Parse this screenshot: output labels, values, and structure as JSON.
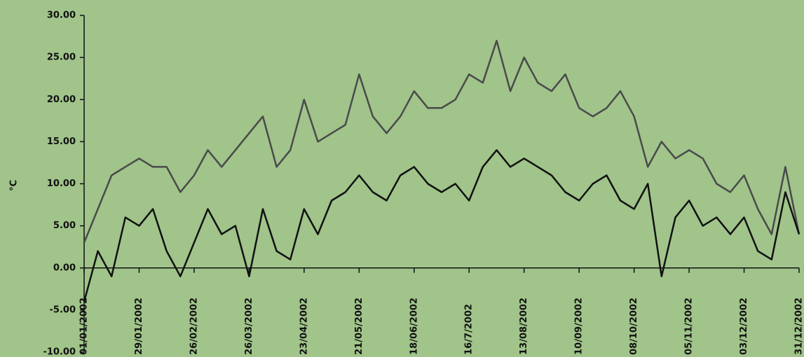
{
  "chart_data": {
    "type": "line",
    "y_label": "°C",
    "x": [
      "2002-01-01",
      "2002-01-08",
      "2002-01-15",
      "2002-01-22",
      "2002-01-29",
      "2002-02-05",
      "2002-02-12",
      "2002-02-19",
      "2002-02-26",
      "2002-03-05",
      "2002-03-12",
      "2002-03-19",
      "2002-03-26",
      "2002-04-02",
      "2002-04-09",
      "2002-04-16",
      "2002-04-23",
      "2002-04-30",
      "2002-05-07",
      "2002-05-14",
      "2002-05-21",
      "2002-05-28",
      "2002-06-04",
      "2002-06-11",
      "2002-06-18",
      "2002-06-25",
      "2002-07-02",
      "2002-07-09",
      "2002-07-16",
      "2002-07-23",
      "2002-07-30",
      "2002-08-06",
      "2002-08-13",
      "2002-08-20",
      "2002-08-27",
      "2002-09-03",
      "2002-09-10",
      "2002-09-17",
      "2002-09-24",
      "2002-10-01",
      "2002-10-08",
      "2002-10-15",
      "2002-10-22",
      "2002-10-29",
      "2002-11-05",
      "2002-11-12",
      "2002-11-19",
      "2002-11-26",
      "2002-12-03",
      "2002-12-10",
      "2002-12-17",
      "2002-12-24",
      "2002-12-31"
    ],
    "series": [
      {
        "color": "#4a4a4a",
        "values": [
          3,
          7,
          11,
          12,
          13,
          12,
          12,
          9,
          11,
          14,
          12,
          14,
          16,
          18,
          12,
          14,
          20,
          15,
          16,
          17,
          23,
          18,
          16,
          18,
          21,
          19,
          19,
          20,
          23,
          22,
          27,
          21,
          25,
          22,
          21,
          23,
          19,
          18,
          19,
          21,
          18,
          12,
          15,
          13,
          14,
          13,
          10,
          9,
          11,
          7,
          4,
          12,
          4
        ]
      },
      {
        "color": "#111111",
        "values": [
          -4,
          2,
          -1,
          6,
          5,
          7,
          2,
          -1,
          3,
          7,
          4,
          5,
          -1,
          7,
          2,
          1,
          7,
          4,
          8,
          9,
          11,
          9,
          8,
          11,
          12,
          10,
          9,
          10,
          8,
          12,
          14,
          12,
          13,
          12,
          11,
          9,
          8,
          10,
          11,
          8,
          7,
          10,
          -1,
          6,
          8,
          5,
          6,
          4,
          6,
          2,
          1,
          9,
          4
        ]
      }
    ],
    "xlim": [
      "2002-01-01",
      "2002-12-31"
    ],
    "xticks": [
      {
        "value": "2002-01-01",
        "label": "01/01/2002"
      },
      {
        "value": "2002-01-29",
        "label": "29/01/2002"
      },
      {
        "value": "2002-02-26",
        "label": "26/02/2002"
      },
      {
        "value": "2002-03-26",
        "label": "26/03/2002"
      },
      {
        "value": "2002-04-23",
        "label": "23/04/2002"
      },
      {
        "value": "2002-05-21",
        "label": "21/05/2002"
      },
      {
        "value": "2002-06-18",
        "label": "18/06/2002"
      },
      {
        "value": "2002-07-16",
        "label": "16/7/2002"
      },
      {
        "value": "2002-08-13",
        "label": "13/08/2002"
      },
      {
        "value": "2002-09-10",
        "label": "10/09/2002"
      },
      {
        "value": "2002-10-08",
        "label": "08/10/2002"
      },
      {
        "value": "2002-11-05",
        "label": "05/11/2002"
      },
      {
        "value": "2002-12-03",
        "label": "03/12/2002"
      },
      {
        "value": "2002-12-31",
        "label": "31/12/2002"
      }
    ],
    "ylim": [
      -10,
      30
    ],
    "yticks": [
      {
        "value": -10,
        "label": "-10.00"
      },
      {
        "value": -5,
        "label": "-5.00"
      },
      {
        "value": 0,
        "label": "0.00"
      },
      {
        "value": 5,
        "label": "5.00"
      },
      {
        "value": 10,
        "label": "10.00"
      },
      {
        "value": 15,
        "label": "15.00"
      },
      {
        "value": 20,
        "label": "20.00"
      },
      {
        "value": 25,
        "label": "25.00"
      },
      {
        "value": 30,
        "label": "30.00"
      }
    ]
  }
}
